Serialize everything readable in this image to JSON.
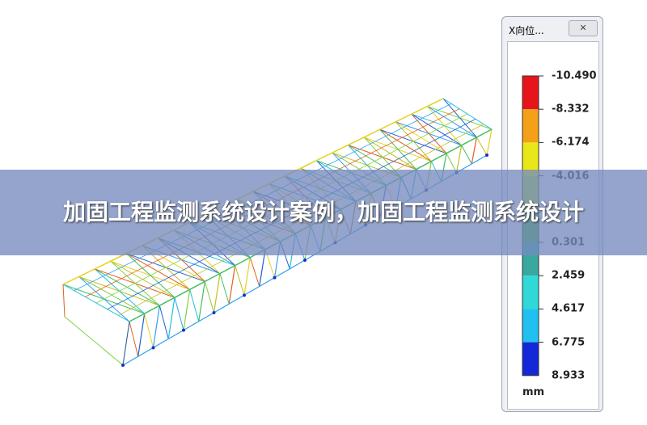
{
  "legend": {
    "window_title": "X向位...",
    "close_button": "✕",
    "labels": [
      "-10.490",
      "-8.332",
      "-6.174",
      "-4.016",
      "0.301",
      "2.459",
      "4.617",
      "6.775",
      "8.933"
    ],
    "unit": "mm"
  },
  "banner": {
    "title": "加固工程监测系统设计案例，加固工程监测系统设计"
  }
}
